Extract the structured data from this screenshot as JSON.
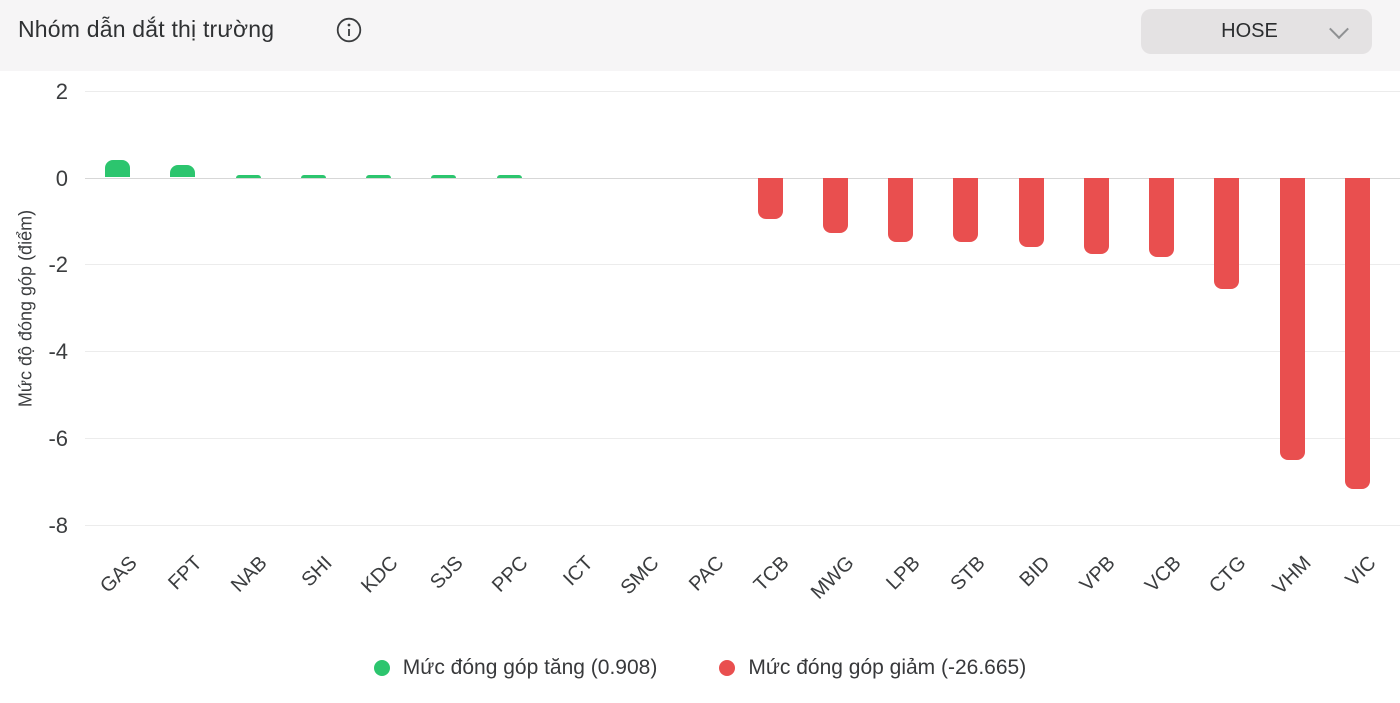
{
  "header": {
    "title": "Nhóm dẫn dắt thị trường",
    "exchange_selector": {
      "value": "HOSE"
    }
  },
  "chart_data": {
    "type": "bar",
    "title": "Nhóm dẫn dắt thị trường",
    "xlabel": "",
    "ylabel": "Mức độ đóng góp (điểm)",
    "ylim": [
      -8,
      2
    ],
    "yticks": [
      2,
      0,
      -2,
      -4,
      -6,
      -8
    ],
    "grid": true,
    "legend_position": "bottom",
    "categories": [
      "GAS",
      "FPT",
      "NAB",
      "SHI",
      "KDC",
      "SJS",
      "PPC",
      "ICT",
      "SMC",
      "PAC",
      "TCB",
      "MWG",
      "LPB",
      "STB",
      "BID",
      "VPB",
      "VCB",
      "CTG",
      "VHM",
      "VIC"
    ],
    "values": [
      0.4,
      0.28,
      0.06,
      0.05,
      0.045,
      0.04,
      0.025,
      0.005,
      0.002,
      0.001,
      -0.96,
      -1.27,
      -1.485,
      -1.49,
      -1.6,
      -1.76,
      -1.84,
      -2.57,
      -6.52,
      -7.17
    ],
    "series": [
      {
        "name": "Mức đóng góp tăng",
        "total": 0.908,
        "color": "#2cc56e"
      },
      {
        "name": "Mức đóng góp giảm",
        "total": -26.665,
        "color": "#e94f4f"
      }
    ]
  },
  "legend": {
    "items": [
      {
        "label": "Mức đóng góp tăng (0.908)",
        "color": "#2cc56e"
      },
      {
        "label": "Mức đóng góp giảm (-26.665)",
        "color": "#e94f4f"
      }
    ]
  },
  "colors": {
    "up": "#2cc56e",
    "down": "#e94f4f",
    "header_bg": "#f6f5f6",
    "text": "#3b3d3f"
  }
}
